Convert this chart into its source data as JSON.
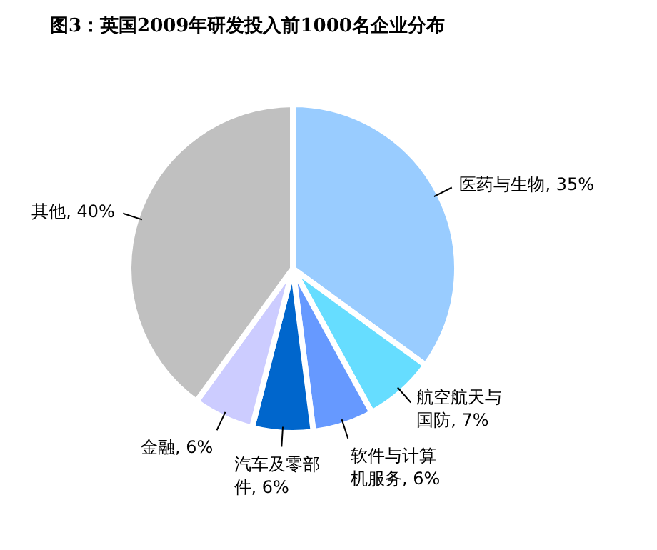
{
  "chart_data": {
    "type": "pie",
    "title": "图3：英国2009年研发投入前1000名企业分布",
    "categories": [
      "医药与生物",
      "航空航天与国防",
      "软件与计算机服务",
      "汽车及零部件",
      "金融",
      "其他"
    ],
    "values": [
      35,
      7,
      6,
      6,
      6,
      40
    ],
    "value_labels": [
      "35%",
      "7%",
      "6%",
      "6%",
      "6%",
      "40%"
    ],
    "colors": [
      "#99ccff",
      "#66ddff",
      "#6699ff",
      "#0066cc",
      "#ccccff",
      "#c0c0c0"
    ]
  }
}
